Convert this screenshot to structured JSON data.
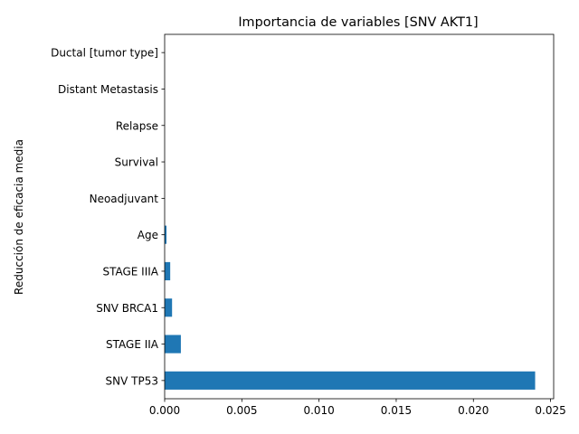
{
  "chart_data": {
    "type": "bar",
    "orientation": "horizontal",
    "title": "Importancia de variables [SNV AKT1]",
    "xlabel": "",
    "ylabel": "Reducción de eficacia media",
    "categories": [
      "SNV TP53",
      "STAGE IIA",
      "SNV BRCA1",
      "STAGE IIIA",
      "Age",
      "Neoadjuvant",
      "Survival",
      "Relapse",
      "Distant Metastasis",
      "Ductal [tumor type]"
    ],
    "values": [
      0.024,
      0.00105,
      0.00048,
      0.00036,
      0.00012,
      0.0,
      0.0,
      0.0,
      0.0,
      0.0
    ],
    "xlim": [
      0,
      0.0252
    ],
    "xticks": [
      0.0,
      0.005,
      0.01,
      0.015,
      0.02,
      0.025
    ],
    "xtick_labels": [
      "0.000",
      "0.005",
      "0.010",
      "0.015",
      "0.020",
      "0.025"
    ],
    "bar_color": "#1f77b4",
    "grid": false
  }
}
